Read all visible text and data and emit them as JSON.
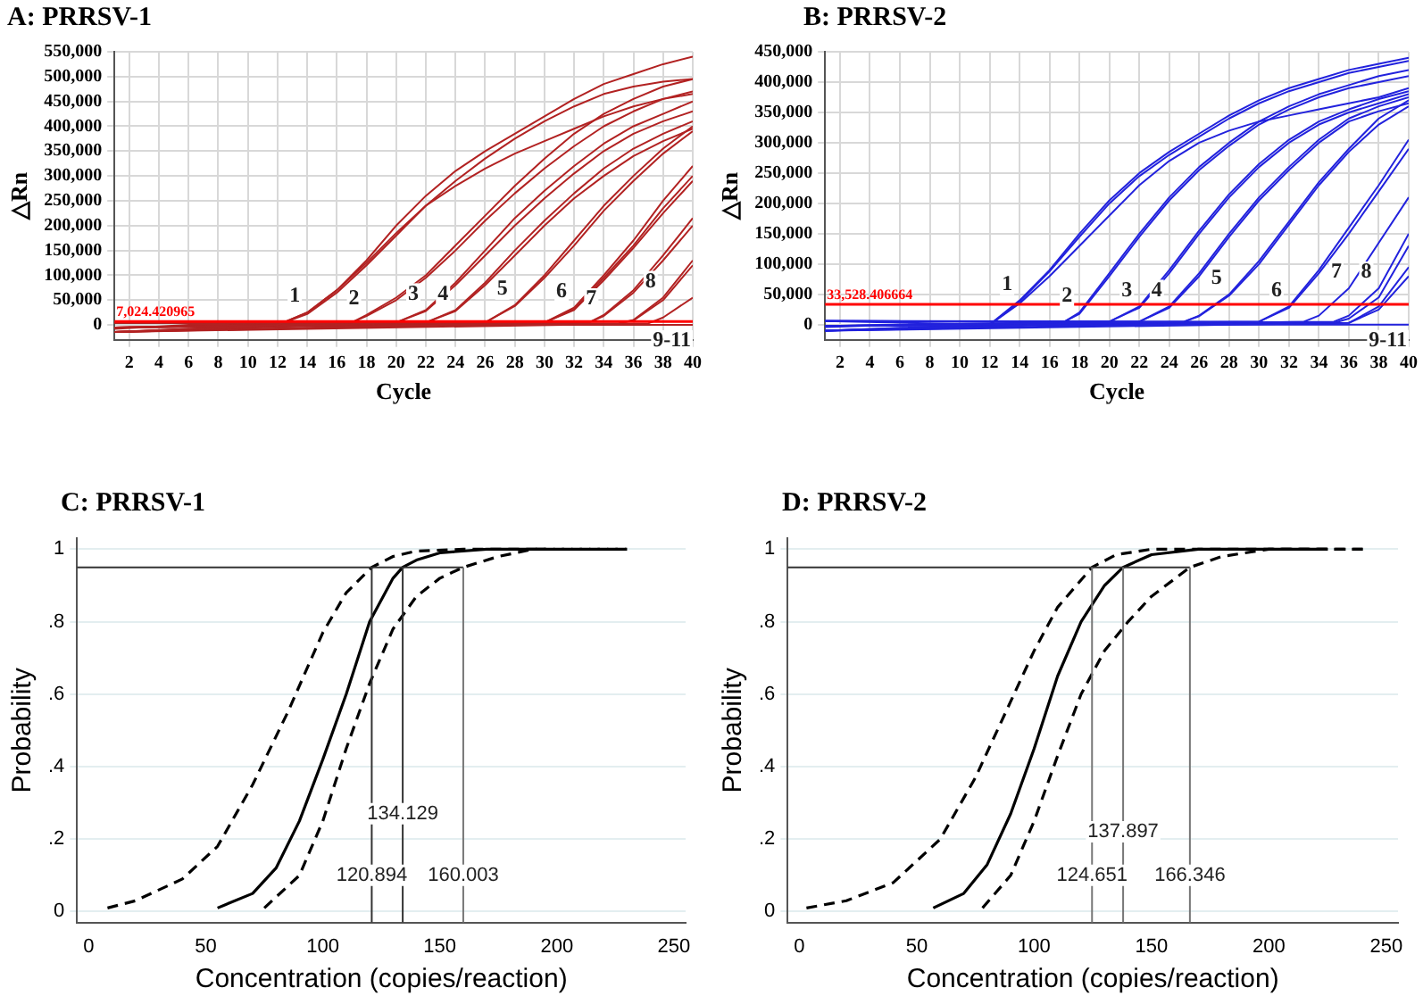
{
  "chart_data": [
    {
      "type": "line",
      "title": "A: PRRSV-1",
      "xlabel": "Cycle",
      "ylabel": "△Rn",
      "xlim": [
        1,
        40
      ],
      "xticks": [
        2,
        4,
        6,
        8,
        10,
        12,
        14,
        16,
        18,
        20,
        22,
        24,
        26,
        28,
        30,
        32,
        34,
        36,
        38,
        40
      ],
      "ylim": [
        -30000,
        550000
      ],
      "yticks": [
        {
          "value": 0,
          "label": "0"
        },
        {
          "value": 50000,
          "label": "50,000"
        },
        {
          "value": 100000,
          "label": "100,000"
        },
        {
          "value": 150000,
          "label": "150,000"
        },
        {
          "value": 200000,
          "label": "200,000"
        },
        {
          "value": 250000,
          "label": "250,000"
        },
        {
          "value": 300000,
          "label": "300,000"
        },
        {
          "value": 350000,
          "label": "350,000"
        },
        {
          "value": 400000,
          "label": "400,000"
        },
        {
          "value": 450000,
          "label": "450,000"
        },
        {
          "value": 500000,
          "label": "500,000"
        },
        {
          "value": 550000,
          "label": "550,000"
        }
      ],
      "grid": true,
      "legend": false,
      "marker": "none",
      "line_style": "solid",
      "ref_lines": [
        {
          "axis": "y",
          "value": 7024.420965,
          "label": "7,024.420965",
          "color": "#ff0000"
        }
      ],
      "annotations": [
        {
          "text": "1",
          "x": 14,
          "y": 25000
        },
        {
          "text": "2",
          "x": 18,
          "y": 20000
        },
        {
          "text": "3",
          "x": 22,
          "y": 30000
        },
        {
          "text": "4",
          "x": 24,
          "y": 30000
        },
        {
          "text": "5",
          "x": 28,
          "y": 40000
        },
        {
          "text": "6",
          "x": 32,
          "y": 35000
        },
        {
          "text": "7",
          "x": 34,
          "y": 20000
        },
        {
          "text": "8",
          "x": 38,
          "y": 55000
        },
        {
          "text": "9-11",
          "x": 40,
          "y": 0
        }
      ],
      "series": [
        {
          "color": "#b22222",
          "x": [
            1,
            12,
            14,
            16,
            18,
            20,
            22,
            24,
            26,
            28,
            30,
            32,
            34,
            36,
            38,
            40
          ],
          "values": [
            -14000,
            0,
            25000,
            70000,
            130000,
            200000,
            260000,
            310000,
            350000,
            385000,
            420000,
            455000,
            485000,
            505000,
            525000,
            540000
          ]
        },
        {
          "color": "#b22222",
          "x": [
            1,
            12,
            14,
            16,
            18,
            20,
            22,
            24,
            26,
            28,
            30,
            32,
            34,
            36,
            38,
            40
          ],
          "values": [
            -5000,
            0,
            25000,
            70000,
            125000,
            185000,
            240000,
            280000,
            315000,
            345000,
            370000,
            395000,
            420000,
            440000,
            455000,
            465000
          ]
        },
        {
          "color": "#b22222",
          "x": [
            1,
            12,
            14,
            16,
            18,
            20,
            22,
            24,
            26,
            28,
            30,
            32,
            34,
            36,
            38,
            40
          ],
          "values": [
            -5000,
            0,
            22000,
            65000,
            120000,
            180000,
            240000,
            290000,
            335000,
            375000,
            410000,
            440000,
            465000,
            480000,
            490000,
            495000
          ]
        },
        {
          "color": "#b22222",
          "x": [
            1,
            17,
            18,
            20,
            22,
            24,
            26,
            28,
            30,
            32,
            34,
            36,
            38,
            40
          ],
          "values": [
            4000,
            5000,
            20000,
            55000,
            100000,
            160000,
            220000,
            280000,
            335000,
            385000,
            425000,
            455000,
            480000,
            495000
          ]
        },
        {
          "color": "#b22222",
          "x": [
            1,
            17,
            18,
            20,
            22,
            24,
            26,
            28,
            30,
            32,
            34,
            36,
            38,
            40
          ],
          "values": [
            -14000,
            5000,
            18000,
            50000,
            95000,
            150000,
            210000,
            265000,
            315000,
            360000,
            400000,
            430000,
            455000,
            470000
          ]
        },
        {
          "color": "#b22222",
          "x": [
            1,
            20,
            22,
            24,
            26,
            28,
            30,
            32,
            34,
            36,
            38,
            40
          ],
          "values": [
            4000,
            5000,
            30000,
            85000,
            150000,
            215000,
            270000,
            320000,
            365000,
            400000,
            425000,
            450000
          ]
        },
        {
          "color": "#b22222",
          "x": [
            1,
            20,
            22,
            24,
            26,
            28,
            30,
            32,
            34,
            36,
            38,
            40
          ],
          "values": [
            -14000,
            5000,
            28000,
            80000,
            140000,
            200000,
            255000,
            305000,
            350000,
            385000,
            410000,
            430000
          ]
        },
        {
          "color": "#b22222",
          "x": [
            1,
            22,
            24,
            26,
            28,
            30,
            32,
            34,
            36,
            38,
            40
          ],
          "values": [
            -5000,
            5000,
            30000,
            85000,
            150000,
            210000,
            265000,
            315000,
            355000,
            385000,
            410000
          ]
        },
        {
          "color": "#b22222",
          "x": [
            1,
            22,
            24,
            26,
            28,
            30,
            32,
            34,
            36,
            38,
            40
          ],
          "values": [
            -14000,
            5000,
            28000,
            80000,
            140000,
            200000,
            255000,
            300000,
            340000,
            370000,
            395000
          ]
        },
        {
          "color": "#b22222",
          "x": [
            1,
            26,
            28,
            30,
            32,
            34,
            36,
            38,
            40
          ],
          "values": [
            4000,
            5000,
            40000,
            100000,
            170000,
            240000,
            300000,
            355000,
            400000
          ]
        },
        {
          "color": "#b22222",
          "x": [
            1,
            26,
            28,
            30,
            32,
            34,
            36,
            38,
            40
          ],
          "values": [
            -5000,
            5000,
            38000,
            95000,
            160000,
            230000,
            290000,
            345000,
            390000
          ]
        },
        {
          "color": "#b22222",
          "x": [
            1,
            30,
            32,
            34,
            36,
            38,
            40
          ],
          "values": [
            4000,
            5000,
            35000,
            100000,
            170000,
            250000,
            320000
          ]
        },
        {
          "color": "#b22222",
          "x": [
            1,
            30,
            32,
            34,
            36,
            38,
            40
          ],
          "values": [
            -14000,
            5000,
            32000,
            95000,
            160000,
            235000,
            300000
          ]
        },
        {
          "color": "#b22222",
          "x": [
            1,
            30,
            32,
            34,
            36,
            38,
            40
          ],
          "values": [
            -5000,
            5000,
            30000,
            90000,
            155000,
            225000,
            290000
          ]
        },
        {
          "color": "#b22222",
          "x": [
            1,
            33,
            34,
            36,
            38,
            40
          ],
          "values": [
            4000,
            5000,
            20000,
            70000,
            140000,
            215000
          ]
        },
        {
          "color": "#b22222",
          "x": [
            1,
            33,
            34,
            36,
            38,
            40
          ],
          "values": [
            -14000,
            5000,
            18000,
            65000,
            130000,
            200000
          ]
        },
        {
          "color": "#b22222",
          "x": [
            1,
            35,
            36,
            38,
            40
          ],
          "values": [
            -5000,
            3000,
            10000,
            55000,
            130000
          ]
        },
        {
          "color": "#b22222",
          "x": [
            1,
            35,
            36,
            38,
            40
          ],
          "values": [
            4000,
            3000,
            9000,
            50000,
            120000
          ]
        },
        {
          "color": "#b22222",
          "x": [
            1,
            37,
            38,
            40
          ],
          "values": [
            -14000,
            3000,
            15000,
            55000
          ]
        },
        {
          "color": "#b22222",
          "x": [
            1,
            6,
            40
          ],
          "values": [
            -8000,
            0,
            0
          ]
        }
      ]
    },
    {
      "type": "line",
      "title": "B: PRRSV-2",
      "xlabel": "Cycle",
      "ylabel": "△Rn",
      "xlim": [
        1,
        40
      ],
      "xticks": [
        2,
        4,
        6,
        8,
        10,
        12,
        14,
        16,
        18,
        20,
        22,
        24,
        26,
        28,
        30,
        32,
        34,
        36,
        38,
        40
      ],
      "ylim": [
        -25000,
        450000
      ],
      "yticks": [
        {
          "value": 0,
          "label": "0"
        },
        {
          "value": 50000,
          "label": "50,000"
        },
        {
          "value": 100000,
          "label": "100,000"
        },
        {
          "value": 150000,
          "label": "150,000"
        },
        {
          "value": 200000,
          "label": "200,000"
        },
        {
          "value": 250000,
          "label": "250,000"
        },
        {
          "value": 300000,
          "label": "300,000"
        },
        {
          "value": 350000,
          "label": "350,000"
        },
        {
          "value": 400000,
          "label": "400,000"
        },
        {
          "value": 450000,
          "label": "450,000"
        }
      ],
      "grid": true,
      "legend": false,
      "marker": "none",
      "line_style": "solid",
      "ref_lines": [
        {
          "axis": "y",
          "value": 33528.406664,
          "label": "33,528.406664",
          "color": "#ff0000"
        }
      ],
      "annotations": [
        {
          "text": "1",
          "x": 14,
          "y": 40000
        },
        {
          "text": "2",
          "x": 18,
          "y": 20000
        },
        {
          "text": "3",
          "x": 22,
          "y": 30000
        },
        {
          "text": "4",
          "x": 24,
          "y": 30000
        },
        {
          "text": "5",
          "x": 28,
          "y": 50000
        },
        {
          "text": "6",
          "x": 32,
          "y": 30000
        },
        {
          "text": "7",
          "x": 36,
          "y": 60000
        },
        {
          "text": "8",
          "x": 38,
          "y": 60000
        },
        {
          "text": "9-11",
          "x": 40,
          "y": 0
        }
      ],
      "series": [
        {
          "color": "#2222dd",
          "x": [
            1,
            12,
            14,
            16,
            18,
            20,
            22,
            24,
            26,
            28,
            30,
            32,
            34,
            36,
            38,
            40
          ],
          "values": [
            6000,
            0,
            40000,
            90000,
            150000,
            205000,
            250000,
            285000,
            315000,
            345000,
            370000,
            390000,
            405000,
            420000,
            430000,
            440000
          ]
        },
        {
          "color": "#2222dd",
          "x": [
            1,
            12,
            14,
            16,
            18,
            20,
            22,
            24,
            26,
            28,
            30,
            32,
            34,
            36,
            38,
            40
          ],
          "values": [
            -2000,
            0,
            38000,
            88000,
            145000,
            200000,
            245000,
            280000,
            310000,
            340000,
            365000,
            385000,
            400000,
            415000,
            425000,
            435000
          ]
        },
        {
          "color": "#2222dd",
          "x": [
            1,
            12,
            14,
            16,
            18,
            20,
            22,
            24,
            26,
            28,
            30,
            32,
            34,
            36,
            38,
            40
          ],
          "values": [
            -10000,
            0,
            35000,
            80000,
            130000,
            180000,
            230000,
            270000,
            300000,
            320000,
            335000,
            345000,
            355000,
            365000,
            375000,
            390000
          ]
        },
        {
          "color": "#2222dd",
          "x": [
            1,
            17,
            18,
            20,
            22,
            24,
            26,
            28,
            30,
            32,
            34,
            36,
            38,
            40
          ],
          "values": [
            -10000,
            5000,
            20000,
            85000,
            150000,
            210000,
            260000,
            300000,
            335000,
            360000,
            380000,
            395000,
            410000,
            420000
          ]
        },
        {
          "color": "#2222dd",
          "x": [
            1,
            17,
            18,
            20,
            22,
            24,
            26,
            28,
            30,
            32,
            34,
            36,
            38,
            40
          ],
          "values": [
            6000,
            5000,
            18000,
            80000,
            145000,
            205000,
            255000,
            295000,
            330000,
            355000,
            375000,
            390000,
            400000,
            410000
          ]
        },
        {
          "color": "#2222dd",
          "x": [
            1,
            20,
            22,
            24,
            26,
            28,
            30,
            32,
            34,
            36,
            38,
            40
          ],
          "values": [
            -2000,
            5000,
            30000,
            90000,
            155000,
            215000,
            265000,
            305000,
            335000,
            355000,
            372000,
            385000
          ]
        },
        {
          "color": "#2222dd",
          "x": [
            1,
            20,
            22,
            24,
            26,
            28,
            30,
            32,
            34,
            36,
            38,
            40
          ],
          "values": [
            6000,
            5000,
            28000,
            85000,
            150000,
            210000,
            260000,
            300000,
            330000,
            350000,
            365000,
            380000
          ]
        },
        {
          "color": "#2222dd",
          "x": [
            1,
            22,
            24,
            26,
            28,
            30,
            32,
            34,
            36,
            38,
            40
          ],
          "values": [
            -10000,
            5000,
            30000,
            85000,
            150000,
            210000,
            260000,
            305000,
            340000,
            360000,
            375000
          ]
        },
        {
          "color": "#2222dd",
          "x": [
            1,
            22,
            24,
            26,
            28,
            30,
            32,
            34,
            36,
            38,
            40
          ],
          "values": [
            6000,
            5000,
            28000,
            80000,
            145000,
            205000,
            255000,
            300000,
            335000,
            352000,
            365000
          ]
        },
        {
          "color": "#2222dd",
          "x": [
            1,
            25,
            26,
            28,
            30,
            32,
            34,
            36,
            38,
            40
          ],
          "values": [
            -2000,
            5000,
            15000,
            50000,
            105000,
            170000,
            235000,
            290000,
            340000,
            370000
          ]
        },
        {
          "color": "#2222dd",
          "x": [
            1,
            25,
            26,
            28,
            30,
            32,
            34,
            36,
            38,
            40
          ],
          "values": [
            -10000,
            5000,
            14000,
            48000,
            100000,
            165000,
            230000,
            285000,
            330000,
            360000
          ]
        },
        {
          "color": "#2222dd",
          "x": [
            1,
            30,
            32,
            34,
            36,
            38,
            40
          ],
          "values": [
            -2000,
            5000,
            30000,
            90000,
            160000,
            230000,
            305000
          ]
        },
        {
          "color": "#2222dd",
          "x": [
            1,
            30,
            32,
            34,
            36,
            38,
            40
          ],
          "values": [
            6000,
            5000,
            28000,
            85000,
            150000,
            220000,
            290000
          ]
        },
        {
          "color": "#2222dd",
          "x": [
            1,
            33,
            34,
            36,
            38,
            40
          ],
          "values": [
            -10000,
            5000,
            15000,
            60000,
            135000,
            210000
          ]
        },
        {
          "color": "#2222dd",
          "x": [
            1,
            35,
            36,
            38,
            40
          ],
          "values": [
            -2000,
            5000,
            15000,
            60000,
            150000
          ]
        },
        {
          "color": "#2222dd",
          "x": [
            1,
            35,
            36,
            38,
            40
          ],
          "values": [
            6000,
            3000,
            10000,
            45000,
            130000
          ]
        },
        {
          "color": "#2222dd",
          "x": [
            1,
            36,
            38,
            40
          ],
          "values": [
            -10000,
            3000,
            30000,
            95000
          ]
        },
        {
          "color": "#2222dd",
          "x": [
            1,
            36,
            38,
            40
          ],
          "values": [
            -2000,
            3000,
            25000,
            80000
          ]
        },
        {
          "color": "#2222dd",
          "x": [
            1,
            6,
            40
          ],
          "values": [
            -4000,
            0,
            0
          ]
        }
      ]
    },
    {
      "type": "line",
      "title": "C: PRRSV-1",
      "xlabel": "Concentration (copies/reaction)",
      "ylabel": "Probability",
      "xlim": [
        -5,
        255
      ],
      "xticks": [
        0,
        50,
        100,
        150,
        200,
        250
      ],
      "ylim": [
        -0.03,
        1.03
      ],
      "yticks": [
        {
          "value": 0,
          "label": "0"
        },
        {
          "value": 0.2,
          "label": ".2"
        },
        {
          "value": 0.4,
          "label": ".4"
        },
        {
          "value": 0.6,
          "label": ".6"
        },
        {
          "value": 0.8,
          "label": ".8"
        },
        {
          "value": 1,
          "label": "1"
        }
      ],
      "grid": "y",
      "legend": false,
      "marker": "none",
      "ref_lines": [
        {
          "axis": "y",
          "value": 0.95,
          "color": "#333333"
        },
        {
          "axis": "x",
          "value": 120.894,
          "color": "#333333"
        },
        {
          "axis": "x",
          "value": 134.129,
          "color": "#333333"
        },
        {
          "axis": "x",
          "value": 160.003,
          "color": "#777777"
        }
      ],
      "annotations": [
        {
          "text": "134.129",
          "x": 134.129,
          "y": 0.27
        },
        {
          "text": "120.894",
          "x": 120.894,
          "y": 0.1
        },
        {
          "text": "160.003",
          "x": 160.003,
          "y": 0.1
        }
      ],
      "series": [
        {
          "color": "#000000",
          "line_style": "solid",
          "x": [
            55,
            70,
            80,
            90,
            100,
            110,
            120,
            130,
            134.129,
            140,
            150,
            170,
            195
          ],
          "values": [
            0.01,
            0.05,
            0.12,
            0.25,
            0.42,
            0.6,
            0.8,
            0.92,
            0.95,
            0.97,
            0.99,
            1,
            1
          ]
        },
        {
          "color": "#000000",
          "line_style": "dashed",
          "x": [
            8,
            20,
            40,
            55,
            70,
            85,
            100,
            110,
            120.894,
            130,
            140,
            160,
            230
          ],
          "values": [
            0.01,
            0.03,
            0.09,
            0.18,
            0.35,
            0.55,
            0.77,
            0.88,
            0.95,
            0.98,
            0.995,
            1,
            1
          ]
        },
        {
          "color": "#000000",
          "line_style": "dashed",
          "x": [
            75,
            90,
            100,
            110,
            120,
            130,
            140,
            150,
            160.003,
            175,
            190,
            230
          ],
          "values": [
            0.01,
            0.1,
            0.25,
            0.45,
            0.63,
            0.78,
            0.87,
            0.92,
            0.95,
            0.98,
            1,
            1
          ]
        }
      ]
    },
    {
      "type": "line",
      "title": "D: PRRSV-2",
      "xlabel": "Concentration (copies/reaction)",
      "ylabel": "Probability",
      "xlim": [
        -5,
        255
      ],
      "xticks": [
        0,
        50,
        100,
        150,
        200,
        250
      ],
      "ylim": [
        -0.03,
        1.03
      ],
      "yticks": [
        {
          "value": 0,
          "label": "0"
        },
        {
          "value": 0.2,
          "label": ".2"
        },
        {
          "value": 0.4,
          "label": ".4"
        },
        {
          "value": 0.6,
          "label": ".6"
        },
        {
          "value": 0.8,
          "label": ".8"
        },
        {
          "value": 1,
          "label": "1"
        }
      ],
      "grid": "y",
      "legend": false,
      "marker": "none",
      "ref_lines": [
        {
          "axis": "y",
          "value": 0.95,
          "color": "#333333"
        },
        {
          "axis": "x",
          "value": 124.651,
          "color": "#777777"
        },
        {
          "axis": "x",
          "value": 137.897,
          "color": "#777777"
        },
        {
          "axis": "x",
          "value": 166.346,
          "color": "#777777"
        }
      ],
      "annotations": [
        {
          "text": "137.897",
          "x": 137.897,
          "y": 0.22
        },
        {
          "text": "124.651",
          "x": 124.651,
          "y": 0.1
        },
        {
          "text": "166.346",
          "x": 166.346,
          "y": 0.1
        }
      ],
      "series": [
        {
          "color": "#000000",
          "line_style": "solid",
          "x": [
            57,
            70,
            80,
            90,
            100,
            110,
            120,
            130,
            137.897,
            150,
            170,
            225
          ],
          "values": [
            0.01,
            0.05,
            0.13,
            0.27,
            0.45,
            0.65,
            0.8,
            0.9,
            0.95,
            0.985,
            1,
            1
          ]
        },
        {
          "color": "#000000",
          "line_style": "dashed",
          "x": [
            3,
            20,
            40,
            60,
            75,
            90,
            100,
            110,
            124.651,
            135,
            150,
            240
          ],
          "values": [
            0.01,
            0.03,
            0.08,
            0.2,
            0.37,
            0.58,
            0.72,
            0.84,
            0.95,
            0.985,
            1,
            1
          ]
        },
        {
          "color": "#000000",
          "line_style": "dashed",
          "x": [
            78,
            90,
            100,
            110,
            120,
            130,
            140,
            150,
            166.346,
            180,
            200,
            240
          ],
          "values": [
            0.01,
            0.1,
            0.25,
            0.43,
            0.6,
            0.72,
            0.8,
            0.87,
            0.95,
            0.98,
            1,
            1
          ]
        }
      ]
    }
  ]
}
